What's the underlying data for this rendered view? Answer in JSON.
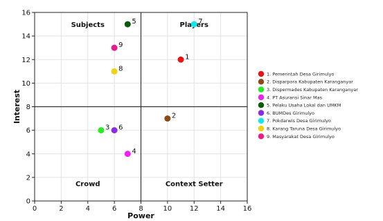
{
  "chart_data": {
    "type": "scatter",
    "xlabel": "Power",
    "ylabel": "Interest",
    "xlim": [
      0,
      16
    ],
    "ylim": [
      0,
      16
    ],
    "xticks": [
      0,
      2,
      4,
      6,
      8,
      10,
      12,
      14,
      16
    ],
    "yticks": [
      0,
      2,
      4,
      6,
      8,
      10,
      12,
      14,
      16
    ],
    "grid": true,
    "divider": {
      "x": 8,
      "y": 8
    },
    "quadrants": [
      {
        "name": "subjects",
        "label": "Subjects",
        "x": 4,
        "y": 15
      },
      {
        "name": "players",
        "label": "Players",
        "x": 12,
        "y": 15
      },
      {
        "name": "crowd",
        "label": "Crowd",
        "x": 4,
        "y": 1.5
      },
      {
        "name": "context-setter",
        "label": "Context Setter",
        "x": 12,
        "y": 1.5
      }
    ],
    "legend_position": "right",
    "points": [
      {
        "id": "1",
        "name": "1. Pemerintah Desa Girimulyo",
        "x": 11,
        "y": 12,
        "color": "#ee1111"
      },
      {
        "id": "2",
        "name": "2. Disparpora Kabupaten Karanganyar",
        "x": 10,
        "y": 7,
        "color": "#8b4a17"
      },
      {
        "id": "3",
        "name": "3. Dispermades Kabupaten Karanganyar",
        "x": 5,
        "y": 6,
        "color": "#22ee22"
      },
      {
        "id": "4",
        "name": "4. PT Asuransi Sinar Mas",
        "x": 7,
        "y": 4,
        "color": "#ee22ee"
      },
      {
        "id": "5",
        "name": "5. Pelaku Usaha Lokal dan UMKM",
        "x": 7,
        "y": 15,
        "color": "#0a5a0a"
      },
      {
        "id": "6",
        "name": "6. BUMDes Girimulyo",
        "x": 6,
        "y": 6,
        "color": "#8b2be2"
      },
      {
        "id": "7",
        "name": "7. Pokdarwis Desa Girimulyo",
        "x": 12,
        "y": 15,
        "color": "#11e8ee"
      },
      {
        "id": "8",
        "name": "8. Karang Taruna Desa Girimulyo",
        "x": 6,
        "y": 11,
        "color": "#f2d012"
      },
      {
        "id": "9",
        "name": "9. Masyarakat Desa Girimulyo",
        "x": 6,
        "y": 13,
        "color": "#ee1a8a"
      }
    ]
  }
}
